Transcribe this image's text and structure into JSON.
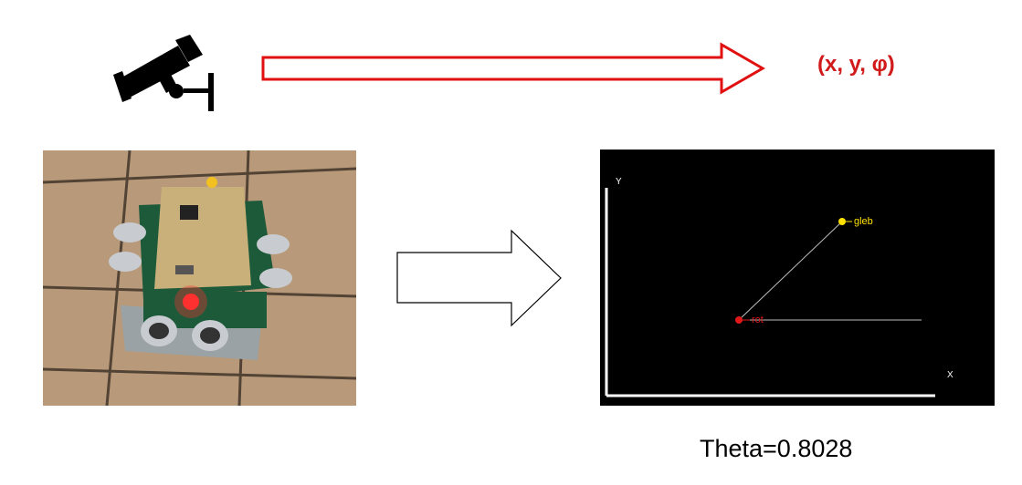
{
  "top": {
    "pose_text": "(x, y, φ)",
    "pose_color": "#d11a1a",
    "arrow_color": "#e01010",
    "camera_icon": "security-camera-icon"
  },
  "photo": {
    "subject": "robot-photo"
  },
  "plot": {
    "background": "#000000",
    "x_label": "X",
    "y_label": "Y",
    "points": [
      {
        "label": "gleb",
        "color": "#ffe000"
      },
      {
        "label": "rot",
        "color": "#e01818"
      }
    ]
  },
  "theta_text": "Theta=0.8028"
}
